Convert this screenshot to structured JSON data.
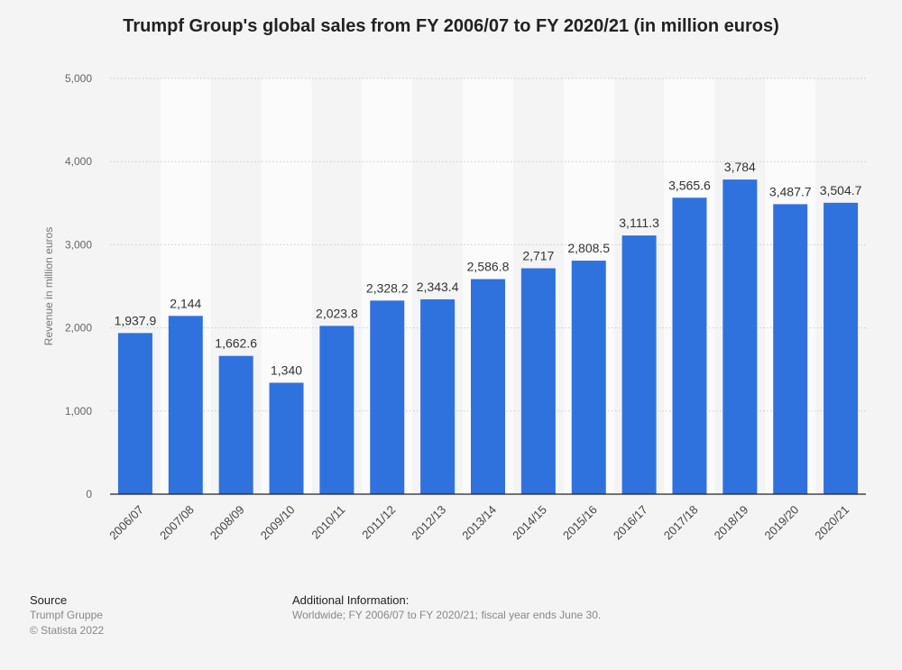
{
  "chart_data": {
    "type": "bar",
    "title": "Trumpf Group's global sales from FY 2006/07 to FY 2020/21 (in million euros)",
    "ylabel": "Revenue in million euros",
    "xlabel": "",
    "ylim": [
      0,
      5000
    ],
    "y_ticks": [
      "0",
      "1,000",
      "2,000",
      "3,000",
      "4,000",
      "5,000"
    ],
    "categories": [
      "2006/07",
      "2007/08",
      "2008/09",
      "2009/10",
      "2010/11",
      "2011/12",
      "2012/13",
      "2013/14",
      "2014/15",
      "2015/16",
      "2016/17",
      "2017/18",
      "2018/19",
      "2019/20",
      "2020/21"
    ],
    "values": [
      1937.9,
      2144,
      1662.6,
      1340,
      2023.8,
      2328.2,
      2343.4,
      2586.8,
      2717,
      2808.5,
      3111.3,
      3565.6,
      3784,
      3487.7,
      3504.7
    ],
    "value_labels": [
      "1,937.9",
      "2,144",
      "1,662.6",
      "1,340",
      "2,023.8",
      "2,328.2",
      "2,343.4",
      "2,586.8",
      "2,717",
      "2,808.5",
      "3,111.3",
      "3,565.6",
      "3,784",
      "3,487.7",
      "3,504.7"
    ],
    "bar_color": "#2f72de",
    "grid": true,
    "legend": "none"
  },
  "footer": {
    "source_heading": "Source",
    "source_lines": [
      "Trumpf Gruppe",
      "© Statista 2022"
    ],
    "info_heading": "Additional Information:",
    "info_text": "Worldwide; FY 2006/07 to FY 2020/21; fiscal year ends June 30."
  }
}
